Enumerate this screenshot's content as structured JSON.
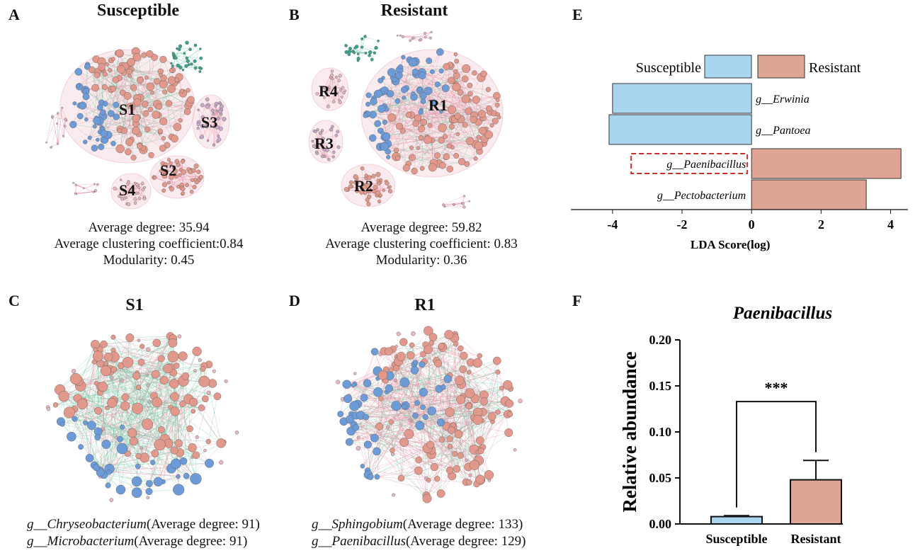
{
  "panels": {
    "A": {
      "letter": "A",
      "title": "Susceptible",
      "stats": [
        "Average degree: 35.94",
        "Average clustering coefficient:0.84",
        "Modularity: 0.45"
      ],
      "modules": [
        "S1",
        "S2",
        "S3",
        "S4"
      ]
    },
    "B": {
      "letter": "B",
      "title": "Resistant",
      "stats": [
        "Average degree: 59.82",
        "Average clustering coefficient: 0.83",
        "Modularity: 0.36"
      ],
      "modules": [
        "R1",
        "R2",
        "R3",
        "R4"
      ]
    },
    "C": {
      "letter": "C",
      "title": "S1",
      "captions": [
        {
          "genus": "g__Chryseobacterium",
          "rest": "(Average degree: 91)"
        },
        {
          "genus": "g__Microbacterium",
          "rest": "(Average degree: 91)"
        }
      ]
    },
    "D": {
      "letter": "D",
      "title": "R1",
      "captions": [
        {
          "genus": "g__Sphingobium",
          "rest": "(Average degree: 133)"
        },
        {
          "genus": "g__Paenibacillus",
          "rest": "(Average degree: 129)"
        }
      ]
    },
    "E": {
      "letter": "E"
    },
    "F": {
      "letter": "F"
    }
  },
  "colors": {
    "susceptible": "#a9d6ee",
    "resistant": "#dfa594",
    "node_blue": "#6d9bd8",
    "node_pink": "#e2998b",
    "node_teal": "#3aa38d",
    "edge_pink": "#e58ba0",
    "edge_green": "#62c49a",
    "highlight": "#c9302c"
  },
  "chart_data": [
    {
      "type": "bar",
      "orientation": "horizontal",
      "panel": "E",
      "legend": [
        "Susceptible",
        "Resistant"
      ],
      "categories": [
        "g__Erwinia",
        "g__Pantoea",
        "g__Paenibacillus",
        "g__Pectobacterium"
      ],
      "values": [
        -4.0,
        -4.1,
        4.3,
        3.3
      ],
      "groups": [
        "Susceptible",
        "Susceptible",
        "Resistant",
        "Resistant"
      ],
      "highlighted": "g__Paenibacillus",
      "xlabel": "LDA Score(log)",
      "xlim": [
        -5.2,
        4.5
      ],
      "xticks": [
        "-4",
        "-2",
        "0",
        "2",
        "4"
      ]
    },
    {
      "type": "bar",
      "panel": "F",
      "title": "Paenibacillus",
      "categories": [
        "Susceptible",
        "Resistant"
      ],
      "values": [
        0.008,
        0.048
      ],
      "errors": [
        0.001,
        0.021
      ],
      "ylabel": "Relative abundance",
      "ylim": [
        0,
        0.2
      ],
      "yticks": [
        "0.00",
        "0.05",
        "0.10",
        "0.15",
        "0.20"
      ],
      "significance": "***"
    }
  ]
}
